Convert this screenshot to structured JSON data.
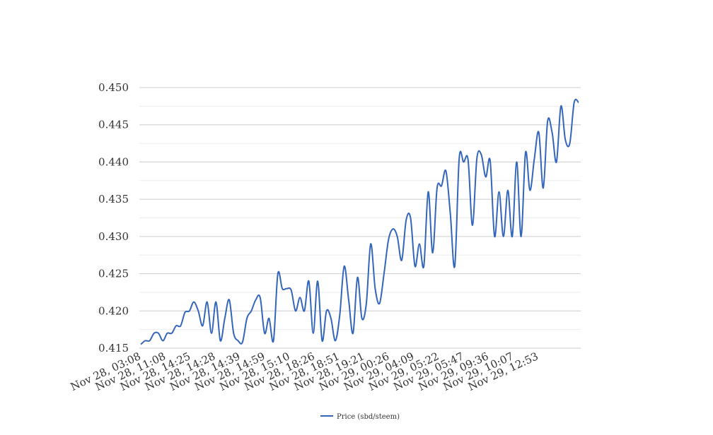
{
  "chart_data": {
    "type": "line",
    "title": "",
    "xlabel": "",
    "ylabel": "",
    "ylim": [
      0.415,
      0.45
    ],
    "yticks": [
      "0.450",
      "0.445",
      "0.440",
      "0.435",
      "0.430",
      "0.425",
      "0.420",
      "0.415"
    ],
    "ytick_values": [
      0.45,
      0.445,
      0.44,
      0.435,
      0.43,
      0.425,
      0.42,
      0.415
    ],
    "grid": true,
    "legend_position": "bottom",
    "x_tick_labels": [
      "Nov 28, 03:08",
      "Nov 28, 11:08",
      "Nov 28, 14:25",
      "Nov 28, 14:28",
      "Nov 28, 14:39",
      "Nov 28, 14:59",
      "Nov 28, 15:10",
      "Nov 28, 18:26",
      "Nov 28, 18:51",
      "Nov 28, 19:21",
      "Nov 29, 00:26",
      "Nov 29, 04:09",
      "Nov 29, 05:22",
      "Nov 29, 05:47",
      "Nov 29, 09:36",
      "Nov 29, 10:07",
      "Nov 29, 12:53"
    ],
    "series": [
      {
        "name": "Price (sbd/steem)",
        "color": "#3366bb",
        "values": [
          0.4155,
          0.416,
          0.416,
          0.417,
          0.417,
          0.416,
          0.417,
          0.417,
          0.418,
          0.418,
          0.4198,
          0.42,
          0.4212,
          0.42,
          0.418,
          0.4212,
          0.417,
          0.4212,
          0.416,
          0.419,
          0.4215,
          0.417,
          0.416,
          0.4158,
          0.419,
          0.42,
          0.4215,
          0.4218,
          0.417,
          0.419,
          0.416,
          0.425,
          0.423,
          0.423,
          0.4228,
          0.42,
          0.4218,
          0.42,
          0.424,
          0.417,
          0.424,
          0.416,
          0.42,
          0.419,
          0.416,
          0.4195,
          0.426,
          0.4215,
          0.417,
          0.4245,
          0.419,
          0.421,
          0.429,
          0.423,
          0.421,
          0.425,
          0.4295,
          0.431,
          0.43,
          0.4268,
          0.4322,
          0.4325,
          0.426,
          0.429,
          0.426,
          0.436,
          0.4278,
          0.4365,
          0.4368,
          0.4388,
          0.433,
          0.426,
          0.4405,
          0.44,
          0.4403,
          0.4315,
          0.4405,
          0.441,
          0.438,
          0.4402,
          0.43,
          0.436,
          0.43,
          0.4362,
          0.43,
          0.44,
          0.43,
          0.4413,
          0.4362,
          0.4405,
          0.444,
          0.4365,
          0.4455,
          0.444,
          0.44,
          0.4475,
          0.443,
          0.4425,
          0.448,
          0.448
        ]
      }
    ]
  }
}
